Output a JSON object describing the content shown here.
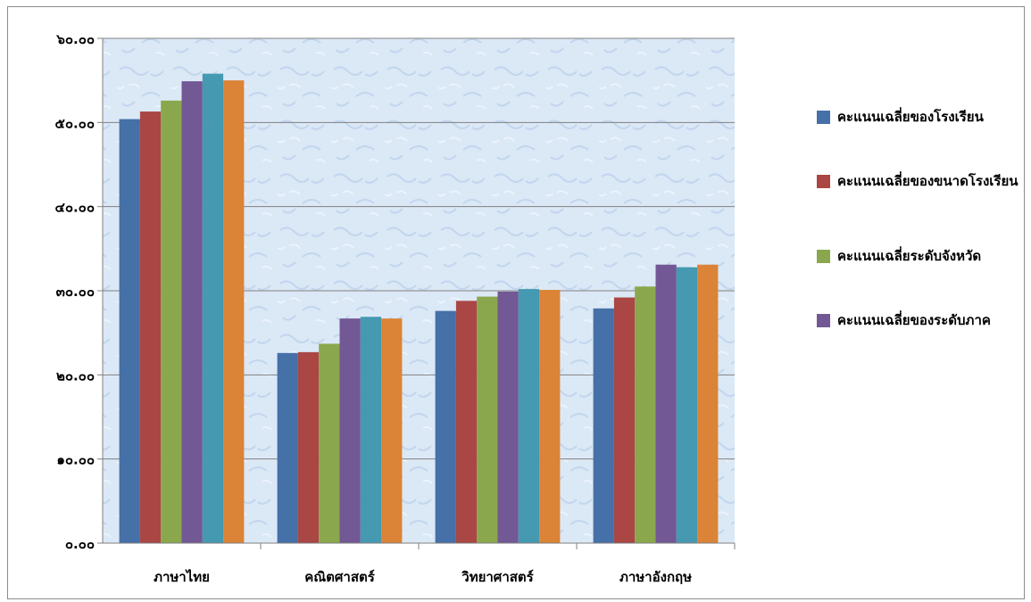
{
  "chart_data": {
    "type": "bar",
    "categories": [
      "ภาษาไทย",
      "คณิตศาสตร์",
      "วิทยาศาสตร์",
      "ภาษาอังกฤษ"
    ],
    "y_tick_labels": [
      "๐.๐๐",
      "๑๐.๐๐",
      "๒๐.๐๐",
      "๓๐.๐๐",
      "๔๐.๐๐",
      "๕๐.๐๐",
      "๖๐.๐๐"
    ],
    "ylim": [
      0,
      60
    ],
    "grid": true,
    "legend_position": "right",
    "series": [
      {
        "name": "คะแนนเฉลี่ยของโรงเรียน",
        "color": "#4570a8",
        "values": [
          50.4,
          22.6,
          27.6,
          27.9
        ]
      },
      {
        "name": "คะแนนเฉลี่ยของขนาดโรงเรียน",
        "color": "#aa4644",
        "values": [
          51.3,
          22.7,
          28.8,
          29.2
        ]
      },
      {
        "name": "คะแนนเฉลี่ยระดับจังหวัด",
        "color": "#8aa74d",
        "values": [
          52.6,
          23.7,
          29.3,
          30.5
        ]
      },
      {
        "name": "คะแนนเฉลี่ยของระดับภาค",
        "color": "#725894",
        "values": [
          54.9,
          26.7,
          29.9,
          33.1
        ]
      },
      {
        "color": "#4599b1",
        "values": [
          55.8,
          26.9,
          30.2,
          32.8
        ]
      },
      {
        "color": "#db8336",
        "values": [
          55.0,
          26.7,
          30.1,
          33.1
        ]
      }
    ]
  }
}
